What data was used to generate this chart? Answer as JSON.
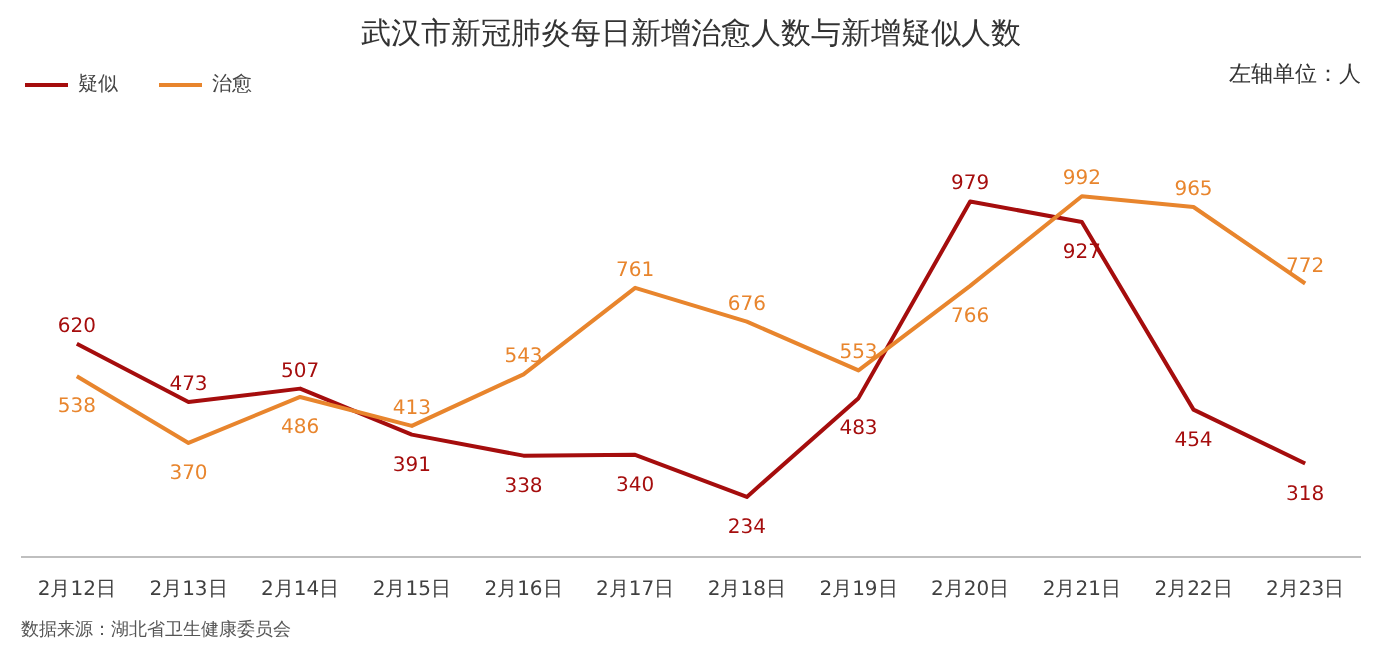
{
  "chart_data": {
    "type": "line",
    "title": "武汉市新冠肺炎每日新增治愈人数与新增疑似人数",
    "categories": [
      "2月12日",
      "2月13日",
      "2月14日",
      "2月15日",
      "2月16日",
      "2月17日",
      "2月18日",
      "2月19日",
      "2月20日",
      "2月21日",
      "2月22日",
      "2月23日"
    ],
    "series": [
      {
        "name": "疑似",
        "color": "#a50d0d",
        "values": [
          620,
          473,
          507,
          391,
          338,
          340,
          234,
          483,
          979,
          927,
          454,
          318
        ]
      },
      {
        "name": "治愈",
        "color": "#e8852d",
        "values": [
          538,
          370,
          486,
          413,
          543,
          761,
          676,
          553,
          766,
          992,
          965,
          772
        ]
      }
    ],
    "data_labels": true,
    "legend": "top left",
    "line_style": "solid",
    "annotations": [
      "左轴单位：人",
      "数据来源：湖北省卫生健康委员会"
    ]
  }
}
